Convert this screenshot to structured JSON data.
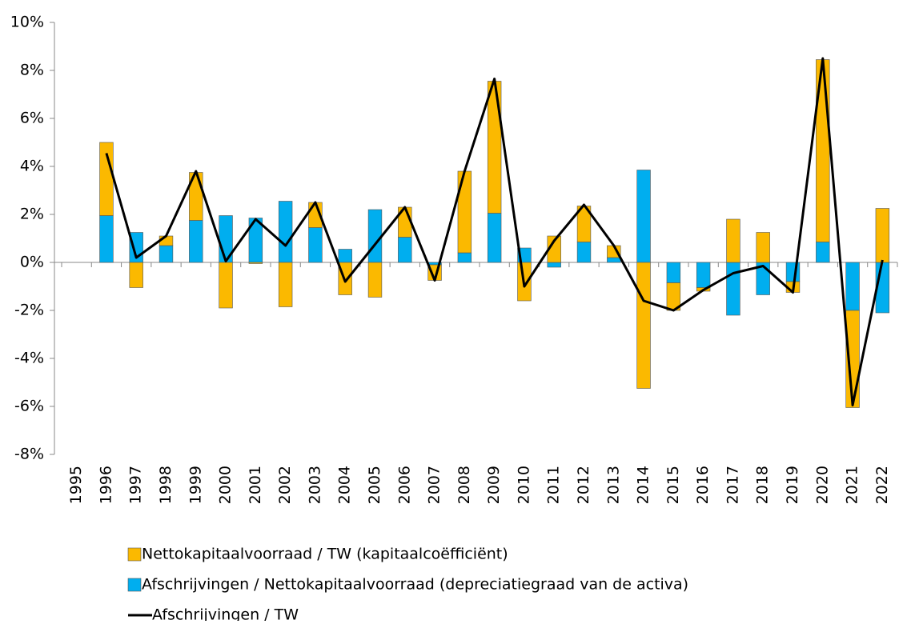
{
  "chart_data": {
    "type": "bar",
    "categories": [
      "1995",
      "1996",
      "1997",
      "1998",
      "1999",
      "2000",
      "2001",
      "2002",
      "2003",
      "2004",
      "2005",
      "2006",
      "2007",
      "2008",
      "2009",
      "2010",
      "2011",
      "2012",
      "2013",
      "2014",
      "2015",
      "2016",
      "2017",
      "2018",
      "2019",
      "2020",
      "2021",
      "2022"
    ],
    "series": [
      {
        "name": "Nettokapitaalvoorraad / TW (kapitaalcoëfficiënt)",
        "type": "bar",
        "color": "#fbb900",
        "values": [
          null,
          3.05,
          -1.05,
          0.4,
          2.0,
          -1.9,
          -0.05,
          -1.85,
          1.05,
          -1.35,
          -1.45,
          1.25,
          -0.65,
          3.4,
          5.5,
          -1.6,
          1.1,
          1.5,
          0.5,
          -5.25,
          -1.15,
          -0.15,
          1.8,
          1.25,
          -0.45,
          7.6,
          -4.05,
          2.25
        ]
      },
      {
        "name": "Afschrijvingen / Nettokapitaalvoorraad (depreciatiegraad van de activa)",
        "type": "bar",
        "color": "#00aeef",
        "values": [
          null,
          1.95,
          1.25,
          0.7,
          1.75,
          1.95,
          1.85,
          2.55,
          1.45,
          0.55,
          2.2,
          1.05,
          -0.1,
          0.4,
          2.05,
          0.6,
          -0.2,
          0.85,
          0.2,
          3.85,
          -0.85,
          -1.05,
          -2.2,
          -1.35,
          -0.8,
          0.85,
          -2.0,
          -2.1
        ]
      },
      {
        "name": "Afschrijvingen / TW",
        "type": "line",
        "color": "#000000",
        "values": [
          null,
          4.55,
          0.2,
          1.1,
          3.8,
          0.05,
          1.8,
          0.7,
          2.5,
          -0.8,
          0.75,
          2.3,
          -0.75,
          3.8,
          7.65,
          -1.0,
          0.9,
          2.4,
          0.7,
          -1.6,
          -2.0,
          -1.15,
          -0.45,
          -0.15,
          -1.25,
          8.5,
          -5.95,
          0.1
        ]
      }
    ],
    "ylim": [
      -8,
      10
    ],
    "yticks": [
      {
        "value": -8,
        "label": "-8%"
      },
      {
        "value": -6,
        "label": "-6%"
      },
      {
        "value": -4,
        "label": "-4%"
      },
      {
        "value": -2,
        "label": "-2%"
      },
      {
        "value": 0,
        "label": "0%"
      },
      {
        "value": 2,
        "label": "2%"
      },
      {
        "value": 4,
        "label": "4%"
      },
      {
        "value": 6,
        "label": "6%"
      },
      {
        "value": 8,
        "label": "8%"
      },
      {
        "value": 10,
        "label": "10%"
      }
    ],
    "grid": false,
    "legend": "bottom"
  }
}
